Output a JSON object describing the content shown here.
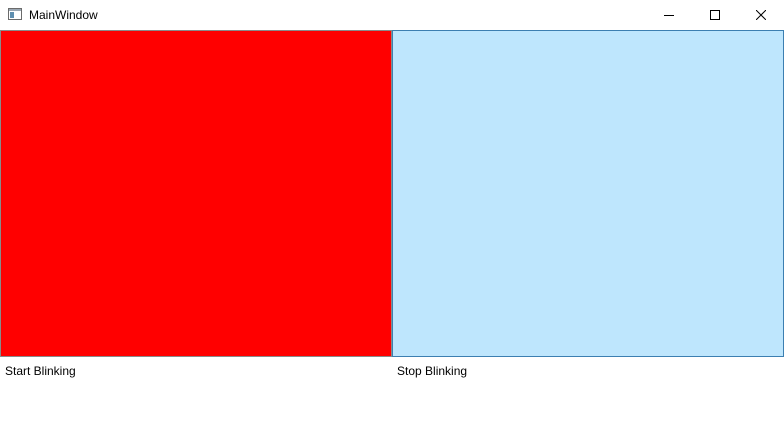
{
  "window": {
    "title": "MainWindow",
    "icon": "window-app-icon",
    "controls": {
      "minimize_icon": "minimize-icon",
      "maximize_icon": "maximize-icon",
      "close_icon": "close-icon"
    }
  },
  "panels": {
    "left": {
      "color": "#ff0000"
    },
    "right": {
      "color": "#bee6fd"
    }
  },
  "buttons": {
    "start_label": "Start Blinking",
    "stop_label": "Stop Blinking"
  }
}
